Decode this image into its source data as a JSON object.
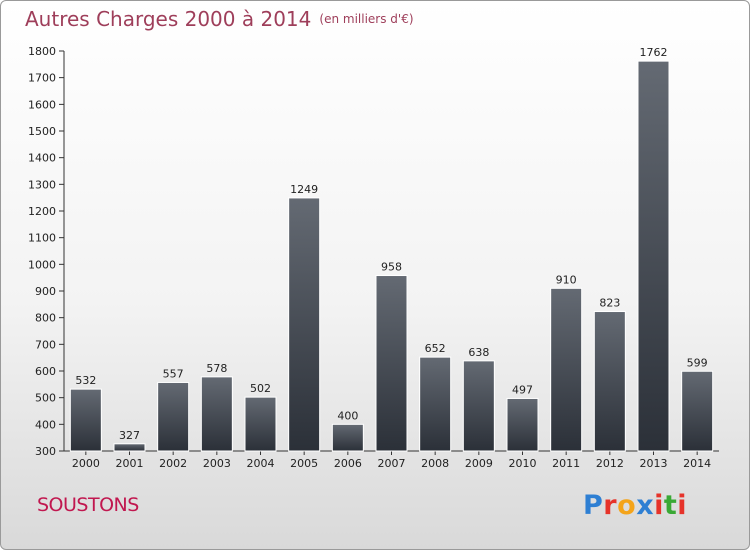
{
  "chart_title": "Autres Charges 2000 à 2014",
  "unit": "(en milliers d'€)",
  "location": "SOUSTONS",
  "logo": {
    "letters": [
      {
        "ch": "P",
        "color": "#2e7fd3"
      },
      {
        "ch": "r",
        "color": "#e6332a"
      },
      {
        "ch": "o",
        "color": "#f4a41a"
      },
      {
        "ch": "x",
        "color": "#2e7fd3"
      },
      {
        "ch": "i",
        "color": "#e6332a"
      },
      {
        "ch": "t",
        "color": "#3aa935"
      },
      {
        "ch": "i",
        "color": "#e6332a"
      }
    ]
  },
  "chart_data": {
    "type": "bar",
    "title": "Autres Charges 2000 à 2014",
    "subtitle": "(en milliers d'€)",
    "categories": [
      "2000",
      "2001",
      "2002",
      "2003",
      "2004",
      "2005",
      "2006",
      "2007",
      "2008",
      "2009",
      "2010",
      "2011",
      "2012",
      "2013",
      "2014"
    ],
    "values": [
      532,
      327,
      557,
      578,
      502,
      1249,
      400,
      958,
      652,
      638,
      497,
      910,
      823,
      1762,
      599
    ],
    "ylim": [
      300,
      1800
    ],
    "yticks": [
      300,
      400,
      500,
      600,
      700,
      800,
      900,
      1000,
      1100,
      1200,
      1300,
      1400,
      1500,
      1600,
      1700,
      1800
    ],
    "grid": false,
    "bar_color": "#4a4f57"
  }
}
